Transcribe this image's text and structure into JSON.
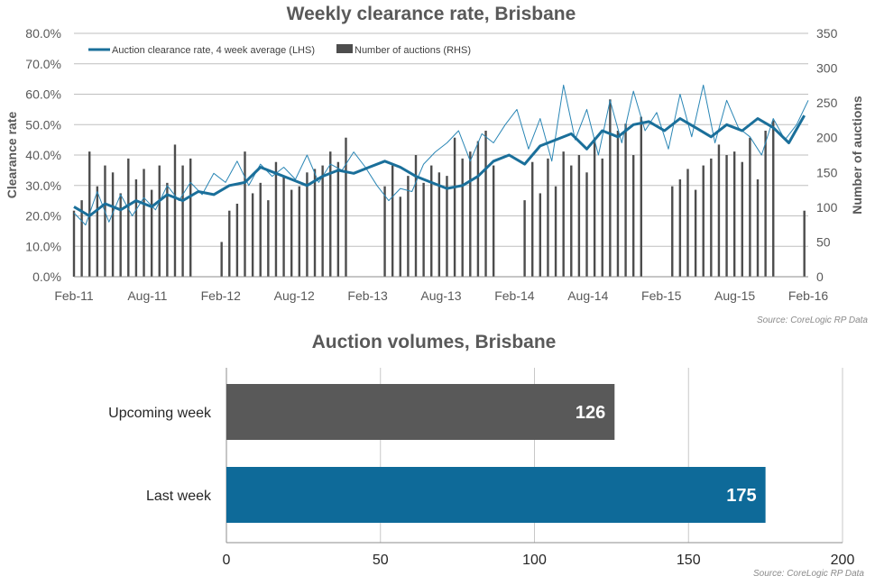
{
  "chart_data": [
    {
      "type": "line",
      "title": "Weekly clearance rate, Brisbane",
      "source": "Source: CoreLogic  RP Data",
      "ylabel_left": "Clearance rate",
      "ylabel_right": "Number of auctions",
      "y_left_ticks": [
        "0.0%",
        "10.0%",
        "20.0%",
        "30.0%",
        "40.0%",
        "50.0%",
        "60.0%",
        "70.0%",
        "80.0%"
      ],
      "y_right_ticks": [
        "0",
        "50",
        "100",
        "150",
        "200",
        "250",
        "300",
        "350"
      ],
      "x_ticks": [
        "Feb-11",
        "Aug-11",
        "Feb-12",
        "Aug-12",
        "Feb-13",
        "Aug-13",
        "Feb-14",
        "Aug-14",
        "Feb-15",
        "Aug-15",
        "Feb-16"
      ],
      "ylim_left": [
        0,
        80
      ],
      "ylim_right": [
        0,
        350
      ],
      "grid": true,
      "legend_position": "top-left",
      "legend": [
        {
          "label": "Auction clearance rate, 4 week average (LHS)",
          "color": "#1a6f9a",
          "kind": "line"
        },
        {
          "label": "Number of auctions (RHS)",
          "color": "#4d4d4d",
          "kind": "bar"
        }
      ],
      "series": [
        {
          "name": "Auction clearance rate, 4 week average (LHS)",
          "x": [
            0,
            4,
            8,
            12,
            16,
            20,
            24,
            28,
            32,
            36,
            40,
            44,
            48,
            52,
            56,
            60,
            64,
            68,
            72,
            76,
            80,
            84,
            88,
            92,
            96,
            100,
            104,
            108,
            112,
            116,
            120,
            124,
            128,
            132,
            136,
            140,
            144,
            148,
            152,
            156,
            160,
            164,
            168,
            172,
            176,
            180,
            184,
            188
          ],
          "values": [
            23,
            20,
            24,
            22,
            25,
            23,
            27,
            25,
            28,
            27,
            30,
            31,
            36,
            34,
            32,
            30,
            33,
            35,
            34,
            36,
            38,
            36,
            33,
            31,
            29,
            30,
            33,
            38,
            40,
            37,
            43,
            45,
            47,
            42,
            48,
            46,
            50,
            51,
            48,
            52,
            49,
            46,
            50,
            48,
            52,
            49,
            44,
            53
          ]
        },
        {
          "name": "Weekly clearance rate",
          "x": [
            0,
            3,
            6,
            9,
            12,
            15,
            18,
            21,
            24,
            27,
            30,
            33,
            36,
            39,
            42,
            45,
            48,
            51,
            54,
            57,
            60,
            63,
            66,
            69,
            72,
            75,
            78,
            81,
            84,
            87,
            90,
            93,
            96,
            99,
            102,
            105,
            108,
            111,
            114,
            117,
            120,
            123,
            126,
            129,
            132,
            135,
            138,
            141,
            144,
            147,
            150,
            153,
            156,
            159,
            162,
            165,
            168,
            171,
            174,
            177,
            180,
            183,
            186,
            189
          ],
          "values": [
            21,
            17,
            28,
            18,
            27,
            20,
            26,
            22,
            30,
            25,
            31,
            27,
            34,
            31,
            38,
            30,
            37,
            33,
            36,
            32,
            40,
            31,
            37,
            35,
            41,
            36,
            30,
            25,
            29,
            28,
            37,
            41,
            44,
            48,
            38,
            47,
            44,
            50,
            55,
            42,
            52,
            38,
            63,
            45,
            55,
            40,
            58,
            44,
            61,
            48,
            54,
            42,
            60,
            46,
            63,
            44,
            58,
            49,
            46,
            40,
            52,
            45,
            50,
            58
          ]
        },
        {
          "name": "Number of auctions (RHS)",
          "x": [
            0,
            2,
            4,
            6,
            8,
            10,
            12,
            14,
            16,
            18,
            20,
            22,
            24,
            26,
            28,
            30,
            32,
            34,
            36,
            38,
            40,
            42,
            44,
            46,
            48,
            50,
            52,
            54,
            56,
            58,
            60,
            62,
            64,
            66,
            68,
            70,
            72,
            74,
            76,
            78,
            80,
            82,
            84,
            86,
            88,
            90,
            92,
            94,
            96,
            98,
            100,
            102,
            104,
            106,
            108,
            110,
            112,
            114,
            116,
            118,
            120,
            122,
            124,
            126,
            128,
            130,
            132,
            134,
            136,
            138,
            140,
            142,
            144,
            146,
            148,
            150,
            152,
            154,
            156,
            158,
            160,
            162,
            164,
            166,
            168,
            170,
            172,
            174,
            176,
            178,
            180,
            182,
            184,
            186,
            188
          ],
          "values": [
            95,
            110,
            180,
            130,
            160,
            150,
            120,
            170,
            140,
            155,
            125,
            160,
            135,
            190,
            160,
            170,
            0,
            0,
            0,
            50,
            95,
            105,
            180,
            120,
            135,
            110,
            165,
            145,
            125,
            130,
            150,
            155,
            160,
            180,
            165,
            200,
            0,
            0,
            0,
            0,
            130,
            160,
            115,
            145,
            175,
            135,
            160,
            150,
            145,
            200,
            170,
            180,
            195,
            210,
            160,
            0,
            0,
            0,
            110,
            165,
            120,
            170,
            130,
            180,
            160,
            175,
            150,
            200,
            170,
            255,
            210,
            220,
            175,
            230,
            0,
            0,
            0,
            130,
            140,
            155,
            125,
            160,
            170,
            190,
            175,
            180,
            165,
            200,
            140,
            210,
            225,
            0,
            0,
            0,
            95
          ]
        }
      ]
    },
    {
      "type": "bar",
      "orientation": "horizontal",
      "title": "Auction volumes, Brisbane",
      "source": "Source: CoreLogic  RP Data",
      "categories": [
        "Upcoming week",
        "Last week"
      ],
      "values": [
        126,
        175
      ],
      "bar_colors": [
        "#595959",
        "#0e6a99"
      ],
      "x_ticks": [
        "0",
        "50",
        "100",
        "150",
        "200"
      ],
      "xlim": [
        0,
        200
      ],
      "grid": true
    }
  ]
}
